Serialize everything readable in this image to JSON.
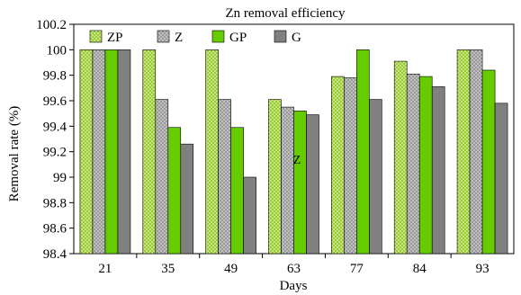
{
  "chart_data": {
    "type": "bar",
    "title": "Zn removal efficiency",
    "xlabel": "Days",
    "ylabel": "Removal rate (%)",
    "categories": [
      "21",
      "35",
      "49",
      "63",
      "77",
      "84",
      "93"
    ],
    "ylim": [
      98.4,
      100.2
    ],
    "yticks": [
      "98.4",
      "98.6",
      "98.8",
      "99",
      "99.2",
      "99.4",
      "99.6",
      "99.8",
      "100",
      "100.2"
    ],
    "grid": false,
    "legend_position": "top-inside",
    "series": [
      {
        "name": "ZP",
        "pattern": "dots-green",
        "values": [
          100.0,
          100.0,
          100.0,
          99.61,
          99.79,
          99.91,
          100.0
        ]
      },
      {
        "name": "Z",
        "pattern": "dots-gray",
        "values": [
          100.0,
          99.61,
          99.61,
          99.55,
          99.78,
          99.81,
          100.0
        ]
      },
      {
        "name": "GP",
        "color": "#66cc00",
        "values": [
          100.0,
          99.39,
          99.39,
          99.52,
          100.0,
          99.79,
          99.84
        ]
      },
      {
        "name": "G",
        "color": "#808080",
        "values": [
          100.0,
          99.26,
          99.0,
          99.49,
          99.61,
          99.71,
          99.58
        ]
      }
    ],
    "annotations": [
      "Z"
    ]
  }
}
